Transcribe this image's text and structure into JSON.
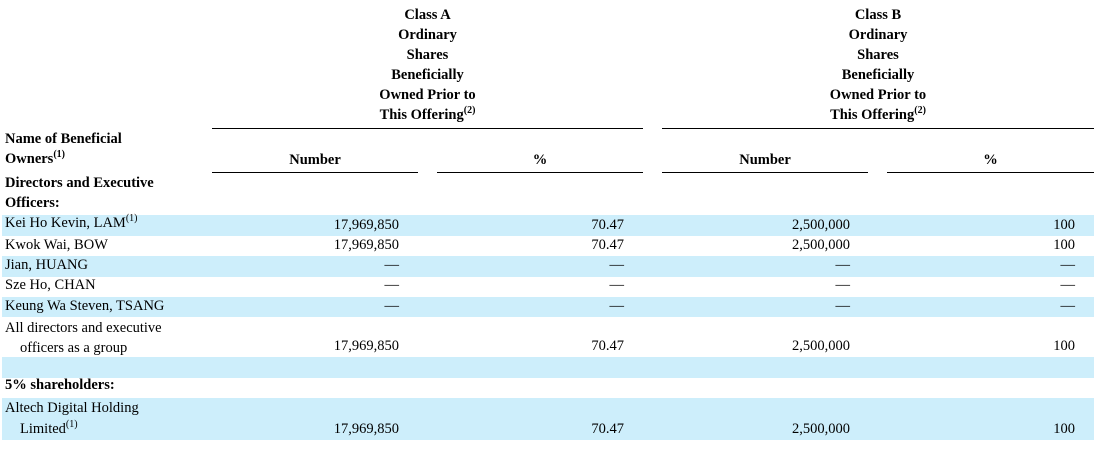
{
  "header": {
    "class_a": [
      "Class A",
      "Ordinary",
      "Shares",
      "Beneficially",
      "Owned Prior to",
      "This Offering"
    ],
    "class_b": [
      "Class B",
      "Ordinary",
      "Shares",
      "Beneficially",
      "Owned Prior to",
      "This Offering"
    ],
    "offering_note": "(2)",
    "name_col": [
      "Name of Beneficial",
      "Owners"
    ],
    "name_note": "(1)",
    "number": "Number",
    "percent": "%"
  },
  "sections": {
    "directors": [
      "Directors and Executive",
      "Officers:"
    ],
    "shareholders": "5% shareholders:"
  },
  "rows": [
    {
      "name": "Kei Ho Kevin, LAM",
      "note": "(1)",
      "a_num": "17,969,850",
      "a_pct": "70.47",
      "b_num": "2,500,000",
      "b_pct": "100"
    },
    {
      "name": "Kwok Wai, BOW",
      "a_num": "17,969,850",
      "a_pct": "70.47",
      "b_num": "2,500,000",
      "b_pct": "100"
    },
    {
      "name": "Jian, HUANG",
      "a_num": "—",
      "a_pct": "—",
      "b_num": "—",
      "b_pct": "—"
    },
    {
      "name": "Sze Ho, CHAN",
      "a_num": "—",
      "a_pct": "—",
      "b_num": "—",
      "b_pct": "—"
    },
    {
      "name": "Keung Wa Steven, TSANG",
      "a_num": "—",
      "a_pct": "—",
      "b_num": "—",
      "b_pct": "—"
    }
  ],
  "group_row": {
    "name": [
      "All directors and executive",
      "officers as a group"
    ],
    "a_num": "17,969,850",
    "a_pct": "70.47",
    "b_num": "2,500,000",
    "b_pct": "100"
  },
  "altech_row": {
    "name": [
      "Altech Digital Holding",
      "Limited"
    ],
    "note": "(1)",
    "a_num": "17,969,850",
    "a_pct": "70.47",
    "b_num": "2,500,000",
    "b_pct": "100"
  }
}
